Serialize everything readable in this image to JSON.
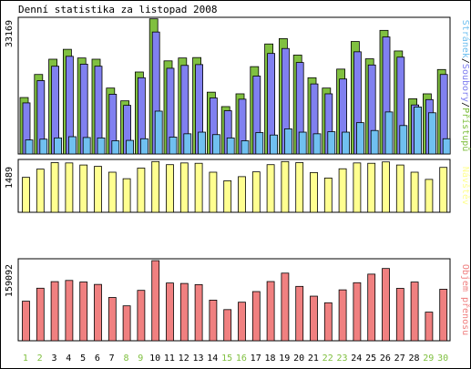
{
  "title": "Denní statistika za listopad 2008",
  "colors": {
    "access": "#80c040",
    "files": "#8080f0",
    "pages": "#70c0f0",
    "visits": "#ffff90",
    "traffic": "#f08080",
    "weekend_tick": "#80c040",
    "weekday_tick": "#000000"
  },
  "chart_data": [
    {
      "type": "bar",
      "name": "hits-panel",
      "max_label": "33169",
      "legend": [
        "Stránek",
        "Soubory",
        "Přístupů"
      ],
      "legend_separator": "/",
      "categories": [
        "1",
        "2",
        "3",
        "4",
        "5",
        "6",
        "7",
        "8",
        "9",
        "10",
        "11",
        "12",
        "13",
        "14",
        "15",
        "16",
        "17",
        "18",
        "19",
        "20",
        "21",
        "22",
        "23",
        "24",
        "25",
        "26",
        "27",
        "28",
        "29",
        "30"
      ],
      "weekend": [
        1,
        2,
        8,
        9,
        15,
        16,
        22,
        23,
        29,
        30
      ],
      "ylim": [
        0,
        33169
      ],
      "series": [
        {
          "name": "Přístupů",
          "values": [
            13700,
            19300,
            23000,
            25400,
            23300,
            23000,
            16000,
            12900,
            19900,
            32800,
            22600,
            23300,
            23400,
            15000,
            11500,
            14600,
            21200,
            26700,
            28000,
            24000,
            18500,
            16000,
            20600,
            27300,
            23100,
            30000,
            25000,
            13400,
            14600,
            20500
          ]
        },
        {
          "name": "Soubory",
          "values": [
            12400,
            17800,
            21300,
            23700,
            21800,
            21300,
            14500,
            11800,
            18500,
            29600,
            20800,
            21500,
            21700,
            13600,
            10500,
            13300,
            18900,
            24400,
            25600,
            22200,
            17000,
            14600,
            18200,
            24800,
            21600,
            28400,
            23500,
            11900,
            13200,
            19300
          ]
        },
        {
          "name": "Stránek",
          "values": [
            3400,
            3600,
            3900,
            4200,
            4000,
            3900,
            3200,
            3300,
            3700,
            10400,
            4100,
            4900,
            5300,
            4700,
            3900,
            3200,
            5200,
            4600,
            6100,
            5300,
            4900,
            5400,
            5300,
            7600,
            5700,
            10200,
            6900,
            11400,
            10000,
            3700
          ]
        }
      ]
    },
    {
      "type": "bar",
      "name": "visits-panel",
      "max_label": "1489",
      "legend": [
        "Návštěv"
      ],
      "categories": [
        "1",
        "2",
        "3",
        "4",
        "5",
        "6",
        "7",
        "8",
        "9",
        "10",
        "11",
        "12",
        "13",
        "14",
        "15",
        "16",
        "17",
        "18",
        "19",
        "20",
        "21",
        "22",
        "23",
        "24",
        "25",
        "26",
        "27",
        "28",
        "29",
        "30"
      ],
      "ylim": [
        0,
        1489
      ],
      "series": [
        {
          "name": "Návštěv",
          "values": [
            1020,
            1260,
            1450,
            1440,
            1380,
            1340,
            1170,
            980,
            1290,
            1480,
            1390,
            1440,
            1430,
            1170,
            920,
            1040,
            1180,
            1390,
            1480,
            1450,
            1160,
            1000,
            1270,
            1440,
            1430,
            1470,
            1380,
            1170,
            960,
            1310
          ]
        }
      ]
    },
    {
      "type": "bar",
      "name": "traffic-panel",
      "max_label": "159092",
      "legend": [
        "Objem přenosu"
      ],
      "categories": [
        "1",
        "2",
        "3",
        "4",
        "5",
        "6",
        "7",
        "8",
        "9",
        "10",
        "11",
        "12",
        "13",
        "14",
        "15",
        "16",
        "17",
        "18",
        "19",
        "20",
        "21",
        "22",
        "23",
        "24",
        "25",
        "26",
        "27",
        "28",
        "29",
        "30"
      ],
      "ylim": [
        0,
        159092
      ],
      "series": [
        {
          "name": "Objem přenosu",
          "values": [
            78500,
            104300,
            117300,
            119700,
            116600,
            111800,
            85900,
            69300,
            100000,
            159000,
            114600,
            113700,
            111400,
            80600,
            61800,
            76500,
            97600,
            117500,
            134200,
            107900,
            88500,
            75400,
            101000,
            115200,
            132200,
            143400,
            104000,
            116500,
            56800,
            102200
          ]
        }
      ]
    }
  ]
}
